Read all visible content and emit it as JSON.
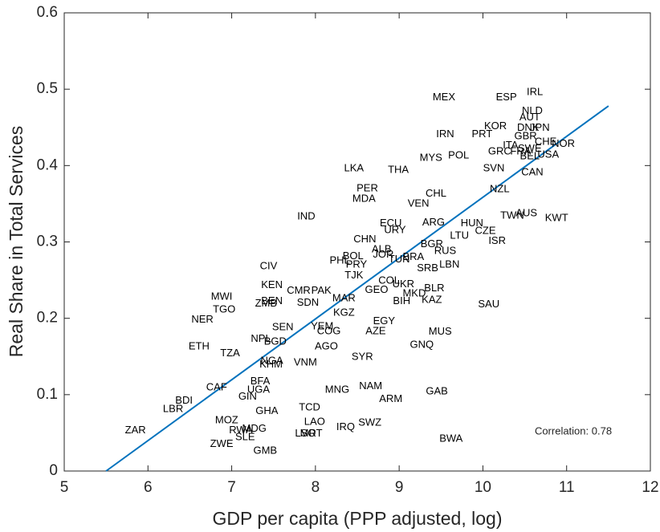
{
  "chart_data": {
    "type": "scatter",
    "x_label": "GDP per capita (PPP adjusted, log)",
    "y_label": "Real Share in Total Services",
    "annotation": "Correlation: 0.78",
    "xlim": [
      5,
      12
    ],
    "ylim": [
      0,
      0.6
    ],
    "xticks": [
      5,
      6,
      7,
      8,
      9,
      10,
      11,
      12
    ],
    "yticks": [
      0,
      0.1,
      0.2,
      0.3,
      0.4,
      0.5,
      0.6
    ],
    "label_color": "#000000",
    "fit_line": {
      "color": "#0072bd",
      "x": [
        5.5,
        11.5
      ],
      "y": [
        0,
        0.478
      ]
    },
    "points": [
      {
        "label": "MEX",
        "x": 9.535,
        "y": 0.489
      },
      {
        "label": "ESP",
        "x": 10.28,
        "y": 0.489
      },
      {
        "label": "IRL",
        "x": 10.62,
        "y": 0.496
      },
      {
        "label": "NLD",
        "x": 10.59,
        "y": 0.471
      },
      {
        "label": "AUT",
        "x": 10.56,
        "y": 0.463
      },
      {
        "label": "KOR",
        "x": 10.15,
        "y": 0.451
      },
      {
        "label": "DNK",
        "x": 10.54,
        "y": 0.449
      },
      {
        "label": "JPN",
        "x": 10.68,
        "y": 0.449
      },
      {
        "label": "GBR",
        "x": 10.51,
        "y": 0.438
      },
      {
        "label": "IRN",
        "x": 9.55,
        "y": 0.441
      },
      {
        "label": "PRT",
        "x": 9.99,
        "y": 0.441
      },
      {
        "label": "CHE",
        "x": 10.75,
        "y": 0.431
      },
      {
        "label": "NOR",
        "x": 10.96,
        "y": 0.428
      },
      {
        "label": "ITA",
        "x": 10.33,
        "y": 0.426
      },
      {
        "label": "SWE",
        "x": 10.56,
        "y": 0.422
      },
      {
        "label": "GRC",
        "x": 10.2,
        "y": 0.418
      },
      {
        "label": "FRA",
        "x": 10.45,
        "y": 0.418
      },
      {
        "label": "BEL",
        "x": 10.56,
        "y": 0.412
      },
      {
        "label": "USA",
        "x": 10.78,
        "y": 0.414
      },
      {
        "label": "MYS",
        "x": 9.38,
        "y": 0.41
      },
      {
        "label": "POL",
        "x": 9.71,
        "y": 0.413
      },
      {
        "label": "SVN",
        "x": 10.13,
        "y": 0.396
      },
      {
        "label": "CAN",
        "x": 10.59,
        "y": 0.391
      },
      {
        "label": "LKA",
        "x": 8.46,
        "y": 0.396
      },
      {
        "label": "THA",
        "x": 8.99,
        "y": 0.394
      },
      {
        "label": "NZL",
        "x": 10.2,
        "y": 0.369
      },
      {
        "label": "PER",
        "x": 8.62,
        "y": 0.37
      },
      {
        "label": "CHL",
        "x": 9.44,
        "y": 0.363
      },
      {
        "label": "MDA",
        "x": 8.58,
        "y": 0.356
      },
      {
        "label": "VEN",
        "x": 9.23,
        "y": 0.35
      },
      {
        "label": "IND",
        "x": 7.89,
        "y": 0.333
      },
      {
        "label": "TWN",
        "x": 10.35,
        "y": 0.334
      },
      {
        "label": "AUS",
        "x": 10.52,
        "y": 0.337
      },
      {
        "label": "KWT",
        "x": 10.88,
        "y": 0.331
      },
      {
        "label": "ECU",
        "x": 8.9,
        "y": 0.324
      },
      {
        "label": "ARG",
        "x": 9.41,
        "y": 0.325
      },
      {
        "label": "HUN",
        "x": 9.87,
        "y": 0.324
      },
      {
        "label": "CZE",
        "x": 10.03,
        "y": 0.314
      },
      {
        "label": "URY",
        "x": 8.95,
        "y": 0.315
      },
      {
        "label": "LTU",
        "x": 9.72,
        "y": 0.308
      },
      {
        "label": "ISR",
        "x": 10.17,
        "y": 0.301
      },
      {
        "label": "CHN",
        "x": 8.59,
        "y": 0.303
      },
      {
        "label": "BGR",
        "x": 9.39,
        "y": 0.297
      },
      {
        "label": "RUS",
        "x": 9.55,
        "y": 0.288
      },
      {
        "label": "ALB",
        "x": 8.79,
        "y": 0.29
      },
      {
        "label": "JOR",
        "x": 8.81,
        "y": 0.283
      },
      {
        "label": "BRA",
        "x": 9.17,
        "y": 0.28
      },
      {
        "label": "BOL",
        "x": 8.45,
        "y": 0.281
      },
      {
        "label": "TUN",
        "x": 9.0,
        "y": 0.277
      },
      {
        "label": "PHL",
        "x": 8.29,
        "y": 0.275
      },
      {
        "label": "PRY",
        "x": 8.49,
        "y": 0.27
      },
      {
        "label": "SRB",
        "x": 9.34,
        "y": 0.265
      },
      {
        "label": "LBN",
        "x": 9.6,
        "y": 0.27
      },
      {
        "label": "CIV",
        "x": 7.44,
        "y": 0.268
      },
      {
        "label": "TJK",
        "x": 8.46,
        "y": 0.256
      },
      {
        "label": "KEN",
        "x": 7.48,
        "y": 0.243
      },
      {
        "label": "CMR",
        "x": 7.8,
        "y": 0.236
      },
      {
        "label": "PAK",
        "x": 8.07,
        "y": 0.236
      },
      {
        "label": "COL",
        "x": 8.88,
        "y": 0.249
      },
      {
        "label": "UKR",
        "x": 9.05,
        "y": 0.244
      },
      {
        "label": "GEO",
        "x": 8.73,
        "y": 0.237
      },
      {
        "label": "BLR",
        "x": 9.42,
        "y": 0.239
      },
      {
        "label": "MAR",
        "x": 8.34,
        "y": 0.226
      },
      {
        "label": "MWI",
        "x": 6.88,
        "y": 0.228
      },
      {
        "label": "BEN",
        "x": 7.48,
        "y": 0.222
      },
      {
        "label": "ZMB",
        "x": 7.41,
        "y": 0.219
      },
      {
        "label": "SDN",
        "x": 7.91,
        "y": 0.22
      },
      {
        "label": "TGO",
        "x": 6.91,
        "y": 0.211
      },
      {
        "label": "BIH",
        "x": 9.03,
        "y": 0.222
      },
      {
        "label": "MKD",
        "x": 9.18,
        "y": 0.232
      },
      {
        "label": "KAZ",
        "x": 9.39,
        "y": 0.224
      },
      {
        "label": "SAU",
        "x": 10.07,
        "y": 0.218
      },
      {
        "label": "KGZ",
        "x": 8.34,
        "y": 0.207
      },
      {
        "label": "NER",
        "x": 6.65,
        "y": 0.198
      },
      {
        "label": "EGY",
        "x": 8.82,
        "y": 0.196
      },
      {
        "label": "SEN",
        "x": 7.61,
        "y": 0.188
      },
      {
        "label": "YEM",
        "x": 8.08,
        "y": 0.189
      },
      {
        "label": "COG",
        "x": 8.16,
        "y": 0.183
      },
      {
        "label": "AZE",
        "x": 8.72,
        "y": 0.183
      },
      {
        "label": "MUS",
        "x": 9.49,
        "y": 0.182
      },
      {
        "label": "NPL",
        "x": 7.35,
        "y": 0.173
      },
      {
        "label": "BGD",
        "x": 7.52,
        "y": 0.169
      },
      {
        "label": "GNQ",
        "x": 9.27,
        "y": 0.165
      },
      {
        "label": "ETH",
        "x": 6.61,
        "y": 0.163
      },
      {
        "label": "TZA",
        "x": 6.98,
        "y": 0.154
      },
      {
        "label": "AGO",
        "x": 8.13,
        "y": 0.163
      },
      {
        "label": "SYR",
        "x": 8.56,
        "y": 0.149
      },
      {
        "label": "NGA",
        "x": 7.48,
        "y": 0.144
      },
      {
        "label": "VNM",
        "x": 7.88,
        "y": 0.142
      },
      {
        "label": "KHM",
        "x": 7.47,
        "y": 0.139
      },
      {
        "label": "BFA",
        "x": 7.34,
        "y": 0.117
      },
      {
        "label": "CAF",
        "x": 6.82,
        "y": 0.109
      },
      {
        "label": "UGA",
        "x": 7.32,
        "y": 0.106
      },
      {
        "label": "NAM",
        "x": 8.66,
        "y": 0.111
      },
      {
        "label": "MNG",
        "x": 8.26,
        "y": 0.106
      },
      {
        "label": "GAB",
        "x": 9.45,
        "y": 0.104
      },
      {
        "label": "GIN",
        "x": 7.19,
        "y": 0.097
      },
      {
        "label": "ARM",
        "x": 8.9,
        "y": 0.094
      },
      {
        "label": "BDI",
        "x": 6.43,
        "y": 0.092
      },
      {
        "label": "LBR",
        "x": 6.3,
        "y": 0.081
      },
      {
        "label": "GHA",
        "x": 7.42,
        "y": 0.078
      },
      {
        "label": "TCD",
        "x": 7.93,
        "y": 0.083
      },
      {
        "label": "SWZ",
        "x": 8.65,
        "y": 0.063
      },
      {
        "label": "LAO",
        "x": 7.99,
        "y": 0.064
      },
      {
        "label": "MOZ",
        "x": 6.94,
        "y": 0.066
      },
      {
        "label": "RWA",
        "x": 7.11,
        "y": 0.053
      },
      {
        "label": "MDG",
        "x": 7.27,
        "y": 0.055
      },
      {
        "label": "IRQ",
        "x": 8.36,
        "y": 0.057
      },
      {
        "label": "LSO",
        "x": 7.88,
        "y": 0.049
      },
      {
        "label": "MRT",
        "x": 7.95,
        "y": 0.049
      },
      {
        "label": "SLE",
        "x": 7.16,
        "y": 0.044
      },
      {
        "label": "ZAR",
        "x": 5.85,
        "y": 0.053
      },
      {
        "label": "BWA",
        "x": 9.62,
        "y": 0.042
      },
      {
        "label": "ZWE",
        "x": 6.88,
        "y": 0.035
      },
      {
        "label": "GMB",
        "x": 7.4,
        "y": 0.026
      }
    ]
  }
}
